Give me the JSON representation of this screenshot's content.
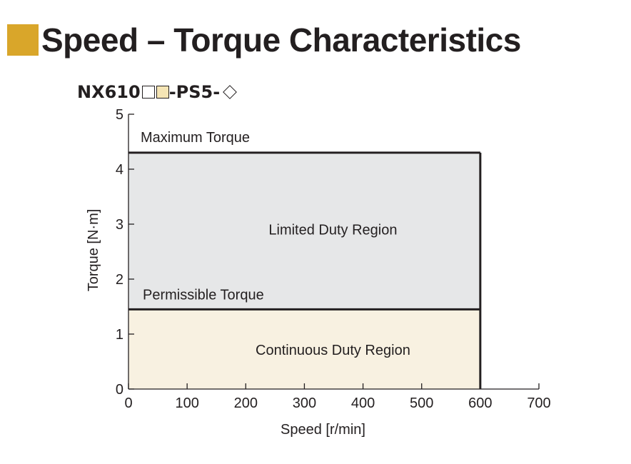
{
  "header": {
    "title": "Speed – Torque Characteristics",
    "square_color": "#d9a62a"
  },
  "model": {
    "prefix": "NX610",
    "suffix": "-PS5-",
    "box_fill_colors": [
      "#ffffff",
      "#f5e5b5"
    ]
  },
  "chart_data": {
    "type": "area",
    "title": "",
    "xlabel": "Speed [r/min]",
    "ylabel": "Torque [N·m]",
    "xlim": [
      0,
      700
    ],
    "ylim": [
      0,
      5
    ],
    "x_ticks": [
      0,
      100,
      200,
      300,
      400,
      500,
      600,
      700
    ],
    "y_ticks": [
      0,
      1,
      2,
      3,
      4,
      5
    ],
    "grid": false,
    "series": [
      {
        "name": "Maximum Torque",
        "x": [
          0,
          600
        ],
        "y": [
          4.3,
          4.3
        ],
        "region_label": "Limited Duty Region",
        "fill": "#e6e7e8"
      },
      {
        "name": "Permissible Torque",
        "x": [
          0,
          600
        ],
        "y": [
          1.45,
          1.45
        ],
        "region_label": "Continuous Duty Region",
        "fill": "#f8f1e1"
      }
    ]
  }
}
